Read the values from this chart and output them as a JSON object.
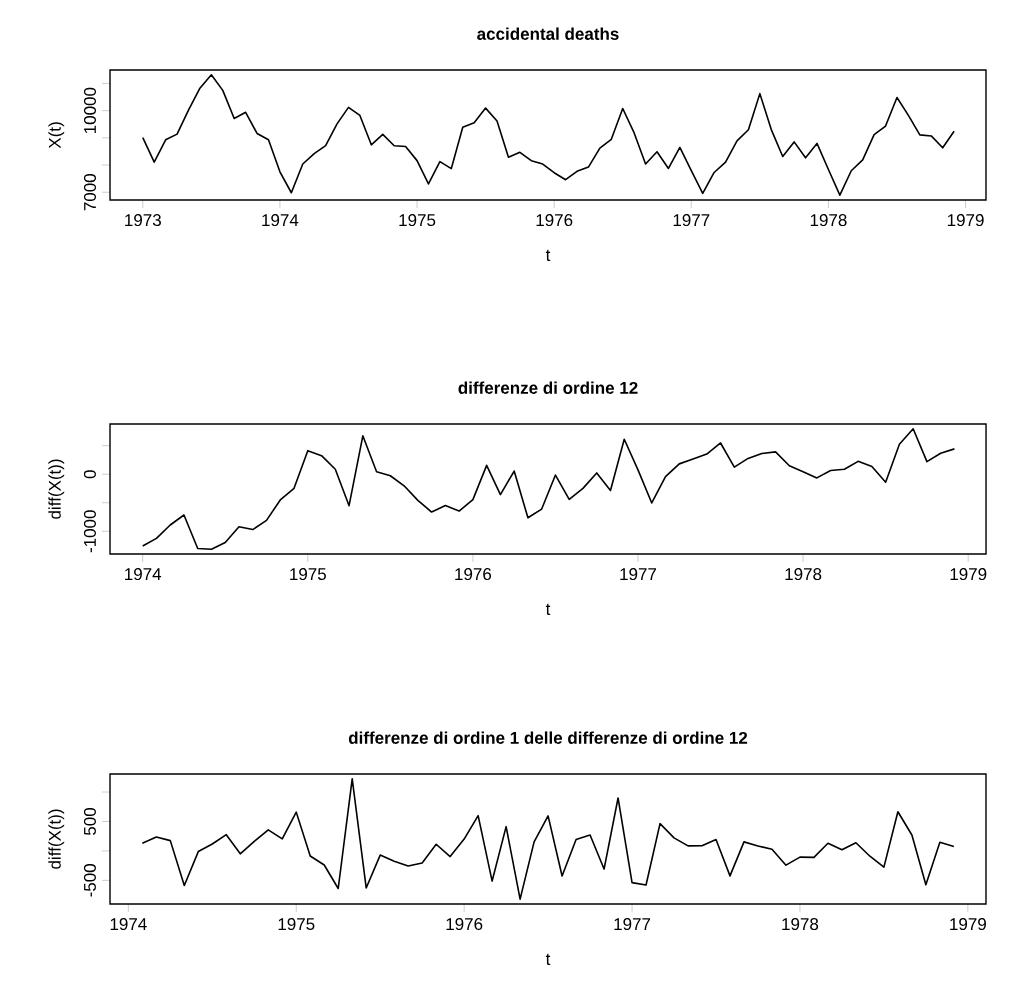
{
  "chart_data": [
    {
      "type": "line",
      "title": "accidental deaths",
      "xlabel": "t",
      "ylabel": "X(t)",
      "xlim": [
        "1972-10-05",
        "1979-02-25"
      ],
      "ylim": [
        6715,
        11494
      ],
      "xticks": [
        "1973",
        "1974",
        "1975",
        "1976",
        "1977",
        "1978",
        "1979"
      ],
      "yticks": [
        7000,
        {
          "value": 8000,
          "label": null
        },
        {
          "value": 9000,
          "label": null
        },
        10000,
        {
          "value": 11000,
          "label": null
        }
      ],
      "series": [
        {
          "color": "#000000",
          "x": [
            "1973-01",
            "1973-02",
            "1973-03",
            "1973-04",
            "1973-05",
            "1973-06",
            "1973-07",
            "1973-08",
            "1973-09",
            "1973-10",
            "1973-11",
            "1973-12",
            "1974-01",
            "1974-02",
            "1974-03",
            "1974-04",
            "1974-05",
            "1974-06",
            "1974-07",
            "1974-08",
            "1974-09",
            "1974-10",
            "1974-11",
            "1974-12",
            "1975-01",
            "1975-02",
            "1975-03",
            "1975-04",
            "1975-05",
            "1975-06",
            "1975-07",
            "1975-08",
            "1975-09",
            "1975-10",
            "1975-11",
            "1975-12",
            "1976-01",
            "1976-02",
            "1976-03",
            "1976-04",
            "1976-05",
            "1976-06",
            "1976-07",
            "1976-08",
            "1976-09",
            "1976-10",
            "1976-11",
            "1976-12",
            "1977-01",
            "1977-02",
            "1977-03",
            "1977-04",
            "1977-05",
            "1977-06",
            "1977-07",
            "1977-08",
            "1977-09",
            "1977-10",
            "1977-11",
            "1977-12",
            "1978-01",
            "1978-02",
            "1978-03",
            "1978-04",
            "1978-05",
            "1978-06",
            "1978-07",
            "1978-08",
            "1978-09",
            "1978-10",
            "1978-11",
            "1978-12"
          ],
          "values": [
            9007,
            8106,
            8928,
            9137,
            10017,
            10826,
            11317,
            10744,
            9713,
            9938,
            9161,
            8927,
            7750,
            6981,
            8038,
            8422,
            8714,
            9512,
            10120,
            9823,
            8743,
            9129,
            8710,
            8680,
            8162,
            7306,
            8124,
            7870,
            9387,
            9556,
            10093,
            9620,
            8285,
            8466,
            8160,
            8034,
            7717,
            7461,
            7767,
            7925,
            8623,
            8945,
            10078,
            9179,
            8037,
            8488,
            7874,
            8647,
            7792,
            6957,
            7726,
            8106,
            8890,
            9299,
            10625,
            9302,
            8314,
            8850,
            8265,
            8796,
            7836,
            6892,
            7791,
            8192,
            9115,
            9434,
            10484,
            9827,
            9110,
            9070,
            8633,
            9240
          ]
        }
      ]
    },
    {
      "type": "line",
      "title": "differenze di ordine 12",
      "xlabel": "t",
      "ylabel": "diff(X(t))",
      "xlim": [
        "1973-10-20",
        "1979-02-10"
      ],
      "ylim": [
        -1398,
        880
      ],
      "xticks": [
        "1974",
        "1975",
        "1976",
        "1977",
        "1978",
        "1979"
      ],
      "yticks": [
        -1000,
        {
          "value": -500,
          "label": null
        },
        0,
        {
          "value": 500,
          "label": null
        }
      ],
      "series": [
        {
          "color": "#000000",
          "x": [
            "1974-01",
            "1974-02",
            "1974-03",
            "1974-04",
            "1974-05",
            "1974-06",
            "1974-07",
            "1974-08",
            "1974-09",
            "1974-10",
            "1974-11",
            "1974-12",
            "1975-01",
            "1975-02",
            "1975-03",
            "1975-04",
            "1975-05",
            "1975-06",
            "1975-07",
            "1975-08",
            "1975-09",
            "1975-10",
            "1975-11",
            "1975-12",
            "1976-01",
            "1976-02",
            "1976-03",
            "1976-04",
            "1976-05",
            "1976-06",
            "1976-07",
            "1976-08",
            "1976-09",
            "1976-10",
            "1976-11",
            "1976-12",
            "1977-01",
            "1977-02",
            "1977-03",
            "1977-04",
            "1977-05",
            "1977-06",
            "1977-07",
            "1977-08",
            "1977-09",
            "1977-10",
            "1977-11",
            "1977-12",
            "1978-01",
            "1978-02",
            "1978-03",
            "1978-04",
            "1978-05",
            "1978-06",
            "1978-07",
            "1978-08",
            "1978-09",
            "1978-10",
            "1978-11",
            "1978-12"
          ],
          "values": [
            -1257,
            -1125,
            -890,
            -715,
            -1303,
            -1314,
            -1197,
            -921,
            -970,
            -809,
            -451,
            -247,
            412,
            325,
            86,
            -552,
            673,
            44,
            -27,
            -203,
            -458,
            -663,
            -550,
            -646,
            -445,
            155,
            -357,
            55,
            -764,
            -611,
            -15,
            -441,
            -248,
            22,
            -286,
            613,
            75,
            -504,
            -41,
            181,
            267,
            354,
            547,
            123,
            277,
            362,
            391,
            149,
            44,
            -65,
            65,
            86,
            225,
            135,
            -141,
            525,
            796,
            220,
            368,
            444
          ]
        }
      ]
    },
    {
      "type": "line",
      "title": "differenze di ordine 1 delle differenze di ordine 12",
      "xlabel": "t",
      "ylabel": "diff(X(t))",
      "xlim": [
        "1973-11-22",
        "1979-02-10"
      ],
      "ylim": [
        -901,
        1307
      ],
      "xticks": [
        "1974",
        "1975",
        "1976",
        "1977",
        "1978",
        "1979"
      ],
      "yticks": [
        -500,
        {
          "value": 0,
          "label": null
        },
        500,
        {
          "value": 1000,
          "label": null
        }
      ],
      "series": [
        {
          "color": "#000000",
          "x": [
            "1974-02",
            "1974-03",
            "1974-04",
            "1974-05",
            "1974-06",
            "1974-07",
            "1974-08",
            "1974-09",
            "1974-10",
            "1974-11",
            "1974-12",
            "1975-01",
            "1975-02",
            "1975-03",
            "1975-04",
            "1975-05",
            "1975-06",
            "1975-07",
            "1975-08",
            "1975-09",
            "1975-10",
            "1975-11",
            "1975-12",
            "1976-01",
            "1976-02",
            "1976-03",
            "1976-04",
            "1976-05",
            "1976-06",
            "1976-07",
            "1976-08",
            "1976-09",
            "1976-10",
            "1976-11",
            "1976-12",
            "1977-01",
            "1977-02",
            "1977-03",
            "1977-04",
            "1977-05",
            "1977-06",
            "1977-07",
            "1977-08",
            "1977-09",
            "1977-10",
            "1977-11",
            "1977-12",
            "1978-01",
            "1978-02",
            "1978-03",
            "1978-04",
            "1978-05",
            "1978-06",
            "1978-07",
            "1978-08",
            "1978-09",
            "1978-10",
            "1978-11",
            "1978-12"
          ],
          "values": [
            132,
            235,
            175,
            -588,
            -11,
            117,
            276,
            -49,
            161,
            358,
            204,
            659,
            -87,
            -239,
            -638,
            1225,
            -629,
            -71,
            -176,
            -255,
            -205,
            113,
            -96,
            201,
            600,
            -512,
            412,
            -819,
            153,
            596,
            -426,
            193,
            270,
            -308,
            899,
            -538,
            -579,
            463,
            222,
            86,
            87,
            193,
            -424,
            154,
            85,
            29,
            -242,
            -105,
            -109,
            130,
            21,
            139,
            -90,
            -276,
            666,
            271,
            -576,
            148,
            76
          ]
        }
      ]
    }
  ]
}
